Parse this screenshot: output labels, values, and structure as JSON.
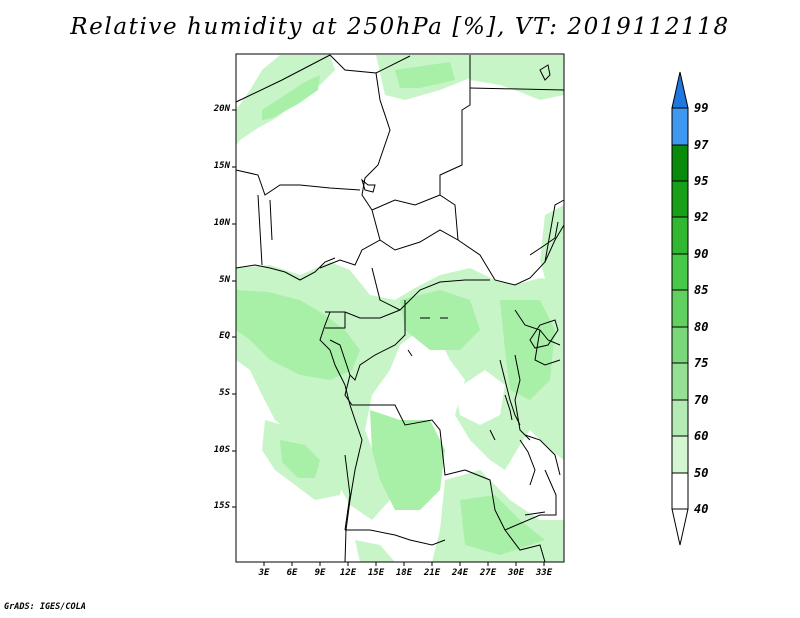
{
  "title": "Relative humidity at 250hPa [%], VT: 2019112118",
  "credit": "GrADS: IGES/COLA",
  "map": {
    "lat_labels": [
      "20N",
      "15N",
      "10N",
      "5N",
      "EQ",
      "5S",
      "10S",
      "15S"
    ],
    "lon_labels": [
      "3E",
      "6E",
      "9E",
      "12E",
      "15E",
      "18E",
      "21E",
      "24E",
      "27E",
      "30E",
      "33E"
    ],
    "fill_colors": [
      "#e8fbe8",
      "#c8f5c8",
      "#a8efa8"
    ]
  },
  "colorbar": {
    "levels": [
      "99",
      "97",
      "95",
      "92",
      "90",
      "85",
      "80",
      "75",
      "70",
      "60",
      "50",
      "40"
    ],
    "colors": [
      "#1e78e0",
      "#4098f0",
      "#0a8a0a",
      "#18a018",
      "#30b830",
      "#48c848",
      "#60d060",
      "#7ad87a",
      "#96e096",
      "#b4ebb4",
      "#d2f5d2",
      "#ffffff"
    ]
  }
}
